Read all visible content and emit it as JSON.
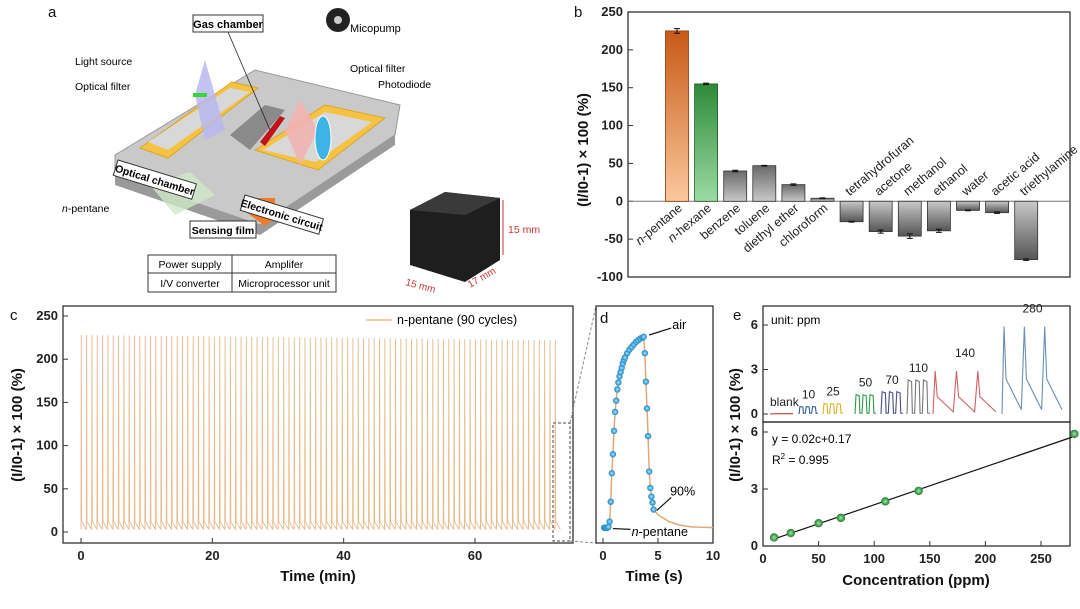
{
  "panel_labels": {
    "a": "a",
    "b": "b",
    "c": "c",
    "d": "d",
    "e": "e"
  },
  "schematic": {
    "gas_chamber": "Gas chamber",
    "micropump": "Micopump",
    "light_source": "Light source",
    "optical_filter_left": "Optical filter",
    "optical_filter_right": "Optical filter",
    "photodiode": "Photodiode",
    "optical_chamber": "Optical chamber",
    "electronic_circuit": "Electronic circuit",
    "sensing_film": "Sensing film",
    "analyte_prefix": "n",
    "analyte_suffix": "-pentane",
    "table": [
      [
        "Power supply",
        "Amplifer"
      ],
      [
        "I/V converter",
        "Microprocessor unit"
      ]
    ],
    "dim_height": "15 mm",
    "dim_width": "15 mm",
    "dim_depth": "17 mm",
    "colors": {
      "frame": "#f5c242",
      "base": "#b9b9b9",
      "film": "#c0141c",
      "arrow": "#f07c28",
      "device": "#1e1e1e"
    }
  },
  "chart_data": [
    {
      "id": "b",
      "type": "bar",
      "ylabel": "(I/I0-1) × 100 (%)",
      "ylim": [
        -100,
        250
      ],
      "yticks": [
        -100,
        -50,
        0,
        50,
        100,
        150,
        200,
        250
      ],
      "categories": [
        "n-pentane",
        "n-hexane",
        "benzene",
        "toluene",
        "diethyl ether",
        "chloroform",
        "tetrahydrofuran",
        "acetone",
        "methanol",
        "ethanol",
        "water",
        "acetic acid",
        "triethylamine"
      ],
      "values": [
        225,
        155,
        40,
        47,
        22,
        4,
        -27,
        -40,
        -46,
        -39,
        -12,
        -15,
        -77
      ],
      "errors": [
        3,
        1,
        1,
        0.5,
        1,
        0.5,
        0.5,
        2,
        3,
        2,
        0.5,
        1,
        1
      ],
      "colors": {
        "n-pentane": "#d2691e",
        "n-hexane": "#3a9a45",
        "others": "#7a7a7a"
      }
    },
    {
      "id": "c",
      "type": "line",
      "xlabel": "Time (min)",
      "ylabel": "(I/I0-1) × 100 (%)",
      "xlim": [
        -3,
        75
      ],
      "ylim": [
        -15,
        260
      ],
      "xticks": [
        0,
        20,
        40,
        60
      ],
      "yticks": [
        0,
        50,
        100,
        150,
        200,
        250
      ],
      "legend": "n-pentane (90 cycles)",
      "legend_position": "top-right",
      "cycles": 90,
      "time_span_min": [
        0,
        73
      ],
      "peak_first": 228,
      "peak_last": 222,
      "color": "#e8b98a"
    },
    {
      "id": "d",
      "type": "line+scatter",
      "xlabel": "Time (s)",
      "xlim": [
        -1,
        10
      ],
      "ylim": [
        -15,
        260
      ],
      "xticks": [
        0,
        5,
        10
      ],
      "curve": {
        "x": [
          0,
          0.5,
          0.6,
          0.7,
          0.8,
          0.9,
          1.0,
          1.1,
          1.2,
          1.3,
          1.5,
          1.8,
          2.2,
          2.7,
          3.2,
          3.7,
          3.8,
          3.9,
          4.0,
          4.1,
          4.2,
          4.3,
          4.4,
          4.5,
          4.6,
          5,
          6,
          7,
          8,
          10
        ],
        "y": [
          5,
          5,
          12,
          35,
          68,
          90,
          117,
          139,
          152,
          165,
          180,
          195,
          207,
          216,
          222,
          226,
          207,
          174,
          143,
          111,
          70,
          51,
          41,
          34,
          26,
          20,
          12,
          8,
          6,
          5
        ]
      },
      "markers": {
        "x": [
          0.1,
          0.2,
          0.3,
          0.4,
          0.5,
          0.6,
          0.7,
          0.8,
          0.9,
          1.0,
          1.1,
          1.2,
          1.3,
          1.4,
          1.5,
          1.6,
          1.7,
          1.8,
          1.9,
          2.0,
          2.2,
          2.4,
          2.6,
          2.8,
          3.0,
          3.2,
          3.4,
          3.6,
          3.7,
          3.8,
          3.9,
          4.0,
          4.1,
          4.2,
          4.3,
          4.4,
          4.5,
          4.6
        ],
        "y": [
          5,
          5,
          5,
          5,
          6,
          12,
          35,
          68,
          90,
          117,
          139,
          152,
          165,
          173,
          180,
          185,
          190,
          195,
          199,
          202,
          207,
          211,
          214,
          217,
          220,
          222,
          224,
          225,
          226,
          207,
          174,
          143,
          111,
          70,
          51,
          41,
          34,
          26
        ]
      },
      "annotations": {
        "air": "air",
        "p90": "90%",
        "start_prefix": "n",
        "start_suffix": "-pentane"
      },
      "line_color": "#e0a878",
      "marker_color": "#2a9fd6"
    },
    {
      "id": "e-top",
      "type": "line",
      "ylim": [
        -0.5,
        7
      ],
      "yticks": [
        0,
        3,
        6
      ],
      "unit_label": "unit: ppm",
      "traces": [
        {
          "label": "blank",
          "amplitude": 0,
          "pulses": 3,
          "color": "#c0392b"
        },
        {
          "label": "10",
          "amplitude": 0.5,
          "pulses": 3,
          "color": "#2c5aa0"
        },
        {
          "label": "25",
          "amplitude": 0.7,
          "pulses": 3,
          "color": "#e0b020"
        },
        {
          "label": "50",
          "amplitude": 1.3,
          "pulses": 3,
          "color": "#2e9a48"
        },
        {
          "label": "70",
          "amplitude": 1.5,
          "pulses": 3,
          "color": "#4a4a8a"
        },
        {
          "label": "110",
          "amplitude": 2.3,
          "pulses": 3,
          "color": "#777777"
        },
        {
          "label": "140",
          "amplitude": 2.9,
          "pulses": 3,
          "color": "#d06060"
        },
        {
          "label": "280",
          "amplitude": 5.9,
          "pulses": 3,
          "color": "#6a8fb0"
        }
      ]
    },
    {
      "id": "e-bottom",
      "type": "scatter",
      "xlabel": "Concentration (ppm)",
      "ylabel": "(I/I0-1) × 100 (%)",
      "xlim": [
        0,
        290
      ],
      "ylim": [
        0,
        6.6
      ],
      "xticks": [
        0,
        50,
        100,
        150,
        200,
        250
      ],
      "yticks": [
        0,
        3,
        6
      ],
      "x": [
        10,
        25,
        50,
        70,
        110,
        140,
        280
      ],
      "y": [
        0.45,
        0.68,
        1.2,
        1.48,
        2.35,
        2.9,
        5.9
      ],
      "fit": {
        "slope": 0.02,
        "intercept": 0.17,
        "equation": "y = 0.02c+0.17",
        "r2_label": "R",
        "r2_value": " = 0.995"
      },
      "marker_color": "#2e8b3a"
    }
  ]
}
